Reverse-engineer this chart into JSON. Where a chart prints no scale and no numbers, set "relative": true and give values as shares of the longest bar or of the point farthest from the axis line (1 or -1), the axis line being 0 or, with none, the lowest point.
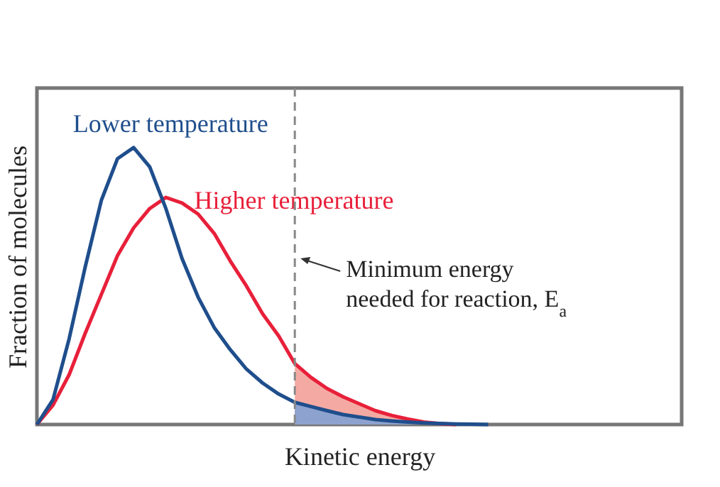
{
  "chart_data": {
    "type": "line",
    "relative": true,
    "xlabel": "Kinetic energy",
    "ylabel": "Fraction of molecules",
    "categories": [
      null,
      null,
      null,
      null,
      null,
      null,
      null,
      null,
      null,
      null,
      null,
      null,
      null,
      null,
      null,
      null,
      null,
      null,
      null,
      null,
      null,
      null,
      null,
      null,
      null,
      null,
      null,
      null,
      null,
      null,
      null,
      null,
      null,
      null,
      null,
      null,
      null,
      null,
      null,
      null,
      null
    ],
    "series": [
      {
        "type": "area",
        "color": "#f4aaa2",
        "values": [
          null,
          null,
          null,
          null,
          null,
          null,
          null,
          null,
          null,
          null,
          null,
          null,
          null,
          null,
          null,
          null,
          0.22,
          0.17,
          0.13,
          0.1,
          0.075,
          0.05,
          0.033,
          0.02,
          0.009,
          0.003,
          0,
          null,
          null,
          null,
          null,
          null,
          null,
          null,
          null,
          null,
          null,
          null,
          null,
          null,
          null
        ]
      },
      {
        "type": "area",
        "color": "#8da2cf",
        "values": [
          null,
          null,
          null,
          null,
          null,
          null,
          null,
          null,
          null,
          null,
          null,
          null,
          null,
          null,
          null,
          null,
          0.08,
          0.065,
          0.05,
          0.036,
          0.027,
          0.018,
          0.013,
          0.009,
          0.006,
          0.004,
          0.002,
          0.001,
          0,
          null,
          null,
          null,
          null,
          null,
          null,
          null,
          null,
          null,
          null,
          null,
          null
        ]
      },
      {
        "name": "Higher temperature",
        "color": "#e8203a",
        "values": [
          0,
          0.07,
          0.18,
          0.33,
          0.47,
          0.61,
          0.71,
          0.78,
          0.82,
          0.8,
          0.76,
          0.69,
          0.59,
          0.5,
          0.4,
          0.32,
          0.22,
          0.17,
          0.13,
          0.1,
          0.075,
          0.05,
          0.033,
          0.02,
          0.009,
          0.003,
          0,
          null,
          null,
          null,
          null,
          null,
          null,
          null,
          null,
          null,
          null,
          null,
          null,
          null,
          null
        ]
      },
      {
        "name": "Lower temperature",
        "color": "#1f4e8c",
        "values": [
          0,
          0.09,
          0.31,
          0.57,
          0.81,
          0.96,
          1,
          0.93,
          0.78,
          0.6,
          0.46,
          0.35,
          0.27,
          0.2,
          0.15,
          0.11,
          0.08,
          0.065,
          0.05,
          0.036,
          0.027,
          0.018,
          0.013,
          0.009,
          0.006,
          0.004,
          0.002,
          0.001,
          0,
          null,
          null,
          null,
          null,
          null,
          null,
          null,
          null,
          null,
          null,
          null,
          null
        ]
      }
    ],
    "ref_lines": [
      {
        "axis": "x",
        "label": "Minimum energy\nneeded for reaction, E$_{a}$",
        "color": "#888888",
        "line_style": "dashed"
      }
    ]
  }
}
